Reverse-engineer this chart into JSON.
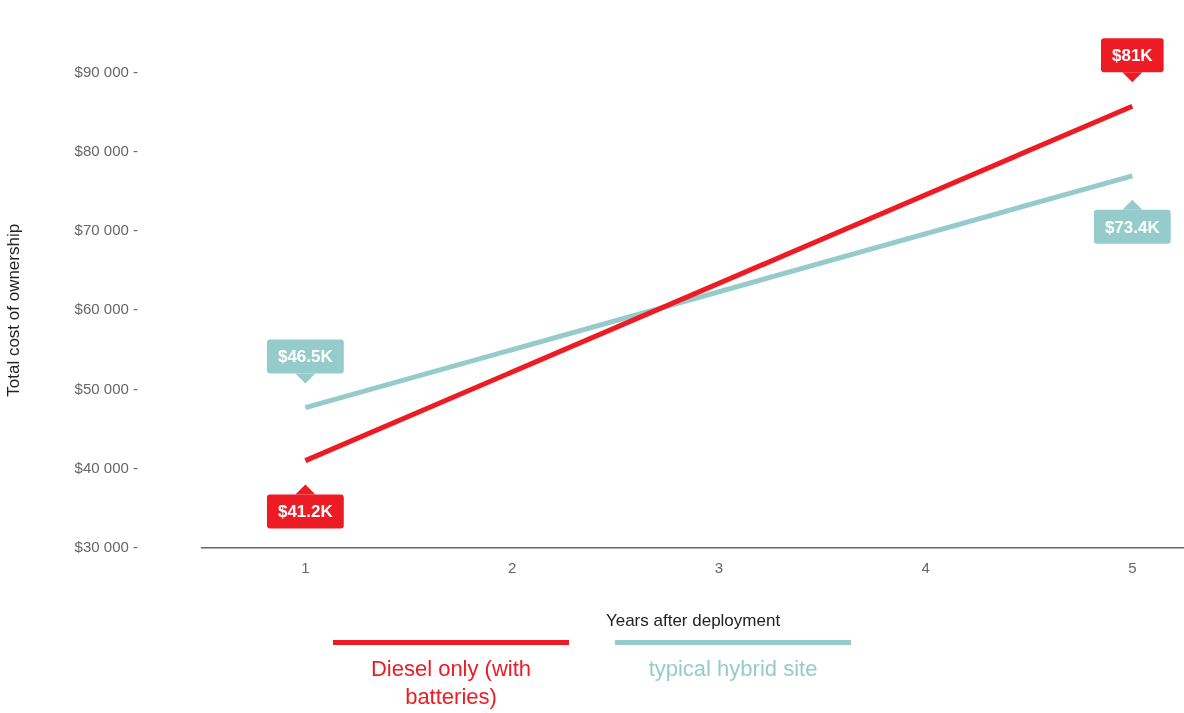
{
  "chart_data": {
    "type": "line",
    "xlabel": "Years after deployment",
    "ylabel": "Total cost of ownership",
    "xlim": [
      0.5,
      5.25
    ],
    "xticks": [
      1,
      2,
      3,
      4,
      5
    ],
    "ylim": [
      30000,
      90000
    ],
    "yticks": [
      {
        "value": 30000,
        "label": "$30 000 -"
      },
      {
        "value": 40000,
        "label": "$40 000 -"
      },
      {
        "value": 50000,
        "label": "$50 000 -"
      },
      {
        "value": 60000,
        "label": "$60 000 -"
      },
      {
        "value": 70000,
        "label": "$70 000 -"
      },
      {
        "value": 80000,
        "label": "$80 000 -"
      },
      {
        "value": 90000,
        "label": "$90 000 -"
      }
    ],
    "grid": false,
    "legend": "bottom",
    "marker": "none",
    "line_style": "solid",
    "x": [
      1,
      5
    ],
    "series": [
      {
        "name": "Diesel only (with batteries)",
        "color": "#ed1c24",
        "values": [
          41000,
          85800
        ]
      },
      {
        "name": "typical hybrid site",
        "color": "#96cbcb",
        "values": [
          47700,
          77000
        ]
      }
    ],
    "annotations": [
      "$41.2K",
      "$81K",
      "$46.5K",
      "$73.4K"
    ]
  }
}
